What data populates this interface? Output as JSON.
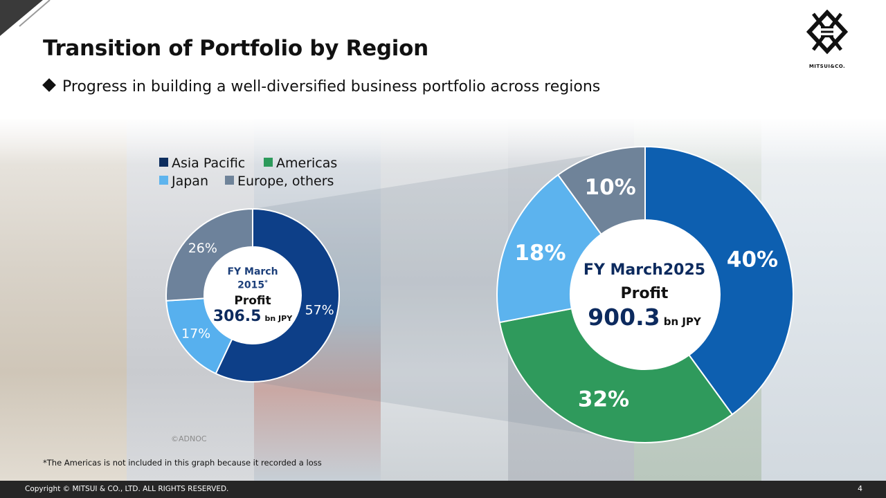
{
  "slide": {
    "title": "Transition of Portfolio by Region",
    "subtitle": "Progress in building a well-diversified business portfolio across regions",
    "logo_text": "MITSUI&CO.",
    "footnote": "*The Americas is not included in this graph because it recorded a loss",
    "photo_credit": "©ADNOC",
    "copyright": "Copyright © MITSUI & CO., LTD. ALL RIGHTS RESERVED.",
    "page_number": "4"
  },
  "legend": [
    {
      "label": "Asia Pacific",
      "color": "#0d2d5e"
    },
    {
      "label": "Americas",
      "color": "#2c9a5b"
    },
    {
      "label": "Japan",
      "color": "#5eb4ee"
    },
    {
      "label": "Europe, others",
      "color": "#6f8399"
    }
  ],
  "chart_data": [
    {
      "type": "pie",
      "center_label": {
        "period": "FY March",
        "year": "2015",
        "marker": "*",
        "metric": "Profit",
        "value": "306.5",
        "unit": "bn JPY"
      },
      "categories": [
        "Asia Pacific",
        "Japan",
        "Europe, others"
      ],
      "values": [
        57,
        17,
        26
      ],
      "labels": [
        "57%",
        "17%",
        "26%"
      ],
      "colors": [
        "#0d3f88",
        "#57b0ee",
        "#6d829b"
      ]
    },
    {
      "type": "pie",
      "center_label": {
        "period": "FY March2025",
        "metric": "Profit",
        "value": "900.3",
        "unit": "bn JPY"
      },
      "categories": [
        "Asia Pacific",
        "Americas",
        "Japan",
        "Europe, others"
      ],
      "values": [
        40,
        32,
        18,
        10
      ],
      "labels": [
        "40%",
        "32%",
        "18%",
        "10%"
      ],
      "colors": [
        "#0d5fb0",
        "#2f9a5c",
        "#5cb3ee",
        "#6f8399"
      ]
    }
  ]
}
